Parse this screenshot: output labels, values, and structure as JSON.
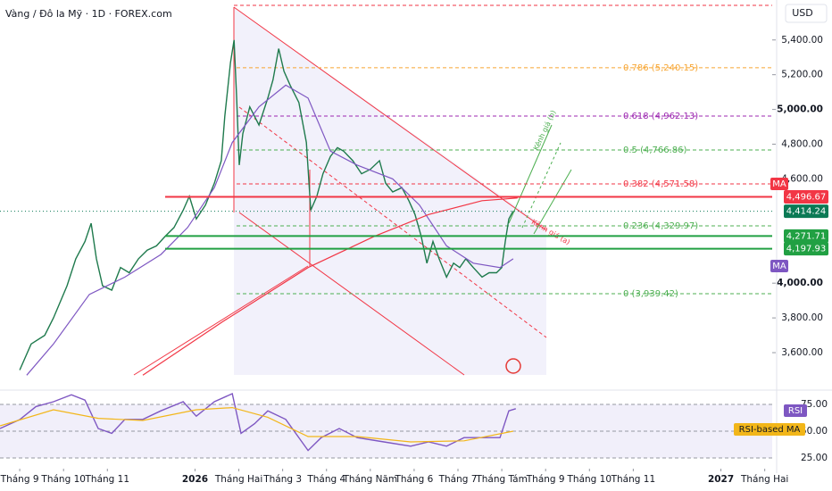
{
  "header": {
    "symbol": "Vàng / Đô la Mỹ · 1D · FOREX.com",
    "currency": "USD"
  },
  "chart_data": [
    {
      "type": "line",
      "xlim": [
        -0.45,
        17.17
      ],
      "ylim": [
        3410,
        5630
      ],
      "yticks": [
        {
          "value": 3600,
          "label": "3,600.00"
        },
        {
          "value": 3800,
          "label": "3,800.00"
        },
        {
          "value": 4000,
          "label": "4,000.00"
        },
        {
          "value": 4600,
          "label": "4,600.00"
        },
        {
          "value": 4800,
          "label": "4,800.00"
        },
        {
          "value": 5000,
          "label": "5,000.00"
        },
        {
          "value": 5200,
          "label": "5,200.00"
        },
        {
          "value": 5400,
          "label": "5,400.00"
        }
      ],
      "xticks": [
        {
          "value": 0,
          "label": "Tháng 9"
        },
        {
          "value": 1,
          "label": "Tháng 10"
        },
        {
          "value": 2,
          "label": "Tháng 11"
        },
        {
          "value": 4,
          "label": "2026"
        },
        {
          "value": 5,
          "label": "Tháng Hai"
        },
        {
          "value": 6,
          "label": "Tháng 3"
        },
        {
          "value": 7,
          "label": "Tháng 4"
        },
        {
          "value": 8,
          "label": "Tháng Năm"
        },
        {
          "value": 9,
          "label": "Tháng 6"
        },
        {
          "value": 10,
          "label": "Tháng 7"
        },
        {
          "value": 11,
          "label": "Tháng Tám"
        },
        {
          "value": 12,
          "label": "Tháng 9"
        },
        {
          "value": 13,
          "label": "Tháng 10"
        },
        {
          "value": 14,
          "label": "Tháng 11"
        },
        {
          "value": 16,
          "label": "2027"
        },
        {
          "value": 17,
          "label": "Tháng Hai"
        }
      ],
      "series": [
        {
          "color": "#1f7a4d",
          "x": [
            0,
            0.26,
            0.57,
            0.77,
            1.08,
            1.28,
            1.49,
            1.63,
            1.75,
            1.89,
            2.1,
            2.3,
            2.5,
            2.71,
            2.91,
            3.12,
            3.32,
            3.52,
            3.73,
            3.87,
            4.03,
            4.24,
            4.44,
            4.6,
            4.68,
            4.81,
            4.89,
            4.95,
            5.01,
            5.09,
            5.25,
            5.46,
            5.66,
            5.78,
            5.91,
            6.03,
            6.17,
            6.37,
            6.54,
            6.64,
            6.78,
            6.92,
            7.09,
            7.25,
            7.39,
            7.6,
            7.8,
            8.0,
            8.21,
            8.35,
            8.51,
            8.72,
            8.88,
            9.02,
            9.16,
            9.29,
            9.43,
            9.57,
            9.74,
            9.9,
            10.04,
            10.18,
            10.35,
            10.55,
            10.71,
            10.88,
            11.0,
            11.08,
            11.16,
            11.26
          ],
          "values": [
            3500,
            3650,
            3700,
            3800,
            3985,
            4140,
            4240,
            4345,
            4140,
            3985,
            3960,
            4090,
            4060,
            4140,
            4190,
            4215,
            4270,
            4320,
            4420,
            4500,
            4370,
            4450,
            4575,
            4705,
            4960,
            5270,
            5400,
            5065,
            4680,
            4860,
            5015,
            4910,
            5065,
            5170,
            5350,
            5220,
            5140,
            5040,
            4810,
            4420,
            4500,
            4630,
            4730,
            4780,
            4760,
            4705,
            4630,
            4655,
            4705,
            4575,
            4525,
            4550,
            4475,
            4395,
            4270,
            4115,
            4240,
            4140,
            4035,
            4115,
            4090,
            4140,
            4090,
            4035,
            4060,
            4060,
            4090,
            4240,
            4370,
            4415
          ]
        },
        {
          "name": "MA",
          "color": "#7e57c2",
          "x": [
            0.16,
            0.77,
            1.59,
            2.4,
            3.22,
            3.83,
            4.44,
            4.85,
            5.46,
            6.07,
            6.58,
            7.09,
            7.7,
            8.51,
            9.12,
            9.74,
            10.35,
            10.96,
            11.26
          ],
          "values": [
            3470,
            3650,
            3935,
            4035,
            4165,
            4320,
            4550,
            4810,
            5015,
            5140,
            5065,
            4760,
            4680,
            4600,
            4450,
            4215,
            4115,
            4090,
            4140
          ]
        },
        {
          "name": "MA",
          "color": "#f23645",
          "x": [
            2.81,
            4.64,
            6.58,
            8.1,
            9.33,
            10.55,
            11.36
          ],
          "values": [
            3470,
            3780,
            4090,
            4270,
            4395,
            4475,
            4490
          ]
        }
      ],
      "levels": [
        {
          "label": "0.786 (5,240.15)",
          "value": 5240.15,
          "color": "#f7a531"
        },
        {
          "label": "0.618 (4,962.13)",
          "value": 4962.13,
          "color": "#9c27b0"
        },
        {
          "label": "0.5 (4,766.86)",
          "value": 4766.86,
          "color": "#4caf50"
        },
        {
          "label": "0.382 (4,571.58)",
          "value": 4571.58,
          "color": "#f23645"
        },
        {
          "label": "0.236 (4,329.97)",
          "value": 4329.97,
          "color": "#4caf50"
        },
        {
          "label": "0 (3,939.42)",
          "value": 3939.42,
          "color": "#4caf50"
        }
      ],
      "price_lines": [
        {
          "value": 4496.67,
          "label": "4,496.67",
          "color": "#f23645"
        },
        {
          "value": 4414.24,
          "label": "4,414.24",
          "color": "#0b7a55"
        },
        {
          "value": 4271.71,
          "label": "4,271.71",
          "color": "#21a043"
        },
        {
          "value": 4197.93,
          "label": "4,197.93",
          "color": "#21a043"
        }
      ],
      "annotations": [
        "Kênh giá (a)",
        "Kênh giá (b)"
      ]
    },
    {
      "type": "line",
      "xlim": [
        -0.45,
        17.17
      ],
      "ylim": [
        17.5,
        85.8
      ],
      "yticks": [
        {
          "value": 25,
          "label": "25.00"
        },
        {
          "value": 50,
          "label": "50.00"
        },
        {
          "value": 75,
          "label": "75.00"
        }
      ],
      "series": [
        {
          "name": "RSI",
          "color": "#7e57c2",
          "x": [
            -0.45,
            0,
            0.37,
            0.77,
            1.18,
            1.49,
            1.79,
            2.1,
            2.4,
            2.81,
            3.22,
            3.73,
            4.03,
            4.44,
            4.85,
            5.05,
            5.36,
            5.66,
            6.07,
            6.58,
            6.88,
            7.29,
            7.7,
            8.31,
            8.92,
            9.33,
            9.74,
            10.14,
            10.65,
            10.96,
            11.16,
            11.32
          ],
          "values": [
            52.5,
            60.8,
            73,
            77.5,
            84,
            79,
            52.5,
            48,
            61,
            61,
            69,
            77.5,
            64,
            77.5,
            85,
            48,
            57,
            69,
            61,
            32,
            44,
            52.5,
            44,
            40,
            36,
            40,
            36,
            44,
            44,
            44,
            69,
            71
          ]
        },
        {
          "name": "RSI-based MA",
          "color": "#f2b619",
          "x": [
            -0.45,
            0.77,
            1.79,
            2.81,
            4.03,
            4.85,
            5.66,
            6.58,
            7.7,
            8.92,
            10.14,
            11.26
          ],
          "values": [
            55,
            70,
            62,
            60,
            70,
            72,
            63,
            45,
            45,
            40,
            41,
            50
          ]
        }
      ]
    }
  ]
}
